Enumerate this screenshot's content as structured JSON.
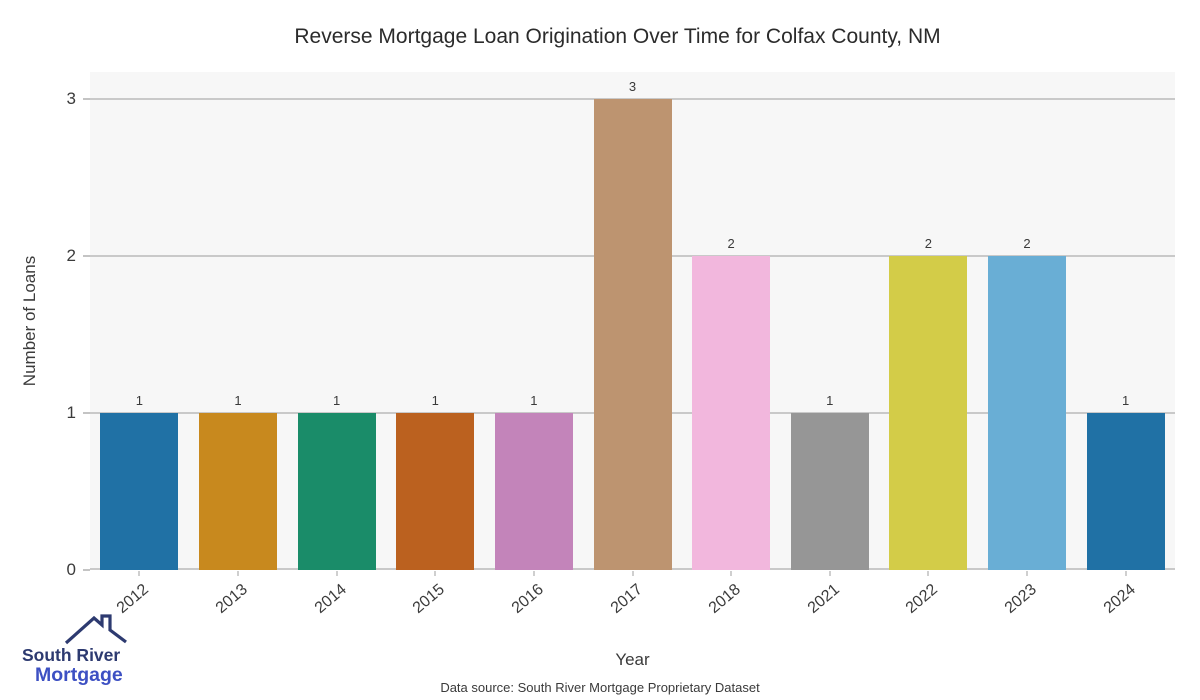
{
  "title": "Reverse Mortgage Loan Origination Over Time for Colfax County, NM",
  "chart_data": {
    "type": "bar",
    "title": "Reverse Mortgage Loan Origination Over Time for Colfax County, NM",
    "categories": [
      "2012",
      "2013",
      "2014",
      "2015",
      "2016",
      "2017",
      "2018",
      "2021",
      "2022",
      "2023",
      "2024"
    ],
    "values": [
      1,
      1,
      1,
      1,
      1,
      3,
      2,
      1,
      2,
      2,
      1
    ],
    "bar_colors": [
      "#2071a5",
      "#c8891e",
      "#1a8c69",
      "#bb611f",
      "#c384ba",
      "#bd9470",
      "#f2b7dd",
      "#969696",
      "#d3cc48",
      "#69aed5",
      "#2071a5"
    ],
    "xlabel": "Year",
    "ylabel": "Number of Loans",
    "yticks": [
      0,
      1,
      2,
      3
    ],
    "ylim": [
      0,
      3.17
    ],
    "grid": "horizontal",
    "legend": "none",
    "plot_bg_color": "#f7f7f7",
    "grid_color": "#c9c9c9"
  },
  "footer": {
    "data_source": "Data source: South River Mortgage Proprietary Dataset"
  },
  "logo": {
    "line1": "South River",
    "line2": "Mortgage",
    "line1_color": "#2d3a70",
    "line2_color": "#3d50c3",
    "roof_color": "#2d3a70"
  }
}
